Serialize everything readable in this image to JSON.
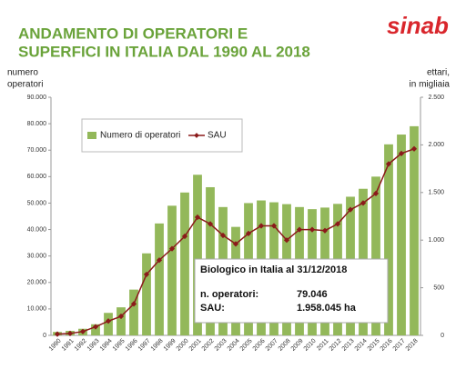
{
  "chart_data": {
    "type": "combo",
    "title": [
      "ANDAMENTO DI OPERATORI E",
      "SUPERFICI IN ITALIA DAL 1990 AL 2018"
    ],
    "logo": "sinab",
    "y_label": [
      "numero",
      "operatori"
    ],
    "y2_label": [
      "ettari,",
      "in migliaia"
    ],
    "categories": [
      "1990",
      "1991",
      "1992",
      "1993",
      "1994",
      "1995",
      "1996",
      "1997",
      "1998",
      "1999",
      "2000",
      "2001",
      "2002",
      "2003",
      "2004",
      "2005",
      "2006",
      "2007",
      "2008",
      "2009",
      "2010",
      "2011",
      "2012",
      "2013",
      "2014",
      "2015",
      "2016",
      "2017",
      "2018"
    ],
    "series": [
      {
        "name": "Numero di operatori",
        "type": "bar",
        "color": "#93b85a",
        "values": [
          1300,
          1700,
          2500,
          4200,
          8500,
          10600,
          17300,
          31000,
          42300,
          49000,
          54000,
          60700,
          56000,
          48500,
          41000,
          50000,
          51000,
          50300,
          49600,
          48500,
          47700,
          48300,
          49700,
          52400,
          55400,
          60000,
          72200,
          75900,
          79046
        ]
      },
      {
        "name": "SAU",
        "type": "line",
        "axis": "y2",
        "color": "#8b1a1a",
        "values": [
          13,
          20,
          40,
          90,
          150,
          200,
          330,
          640,
          790,
          910,
          1040,
          1240,
          1170,
          1050,
          960,
          1070,
          1150,
          1150,
          1000,
          1110,
          1110,
          1100,
          1170,
          1320,
          1390,
          1490,
          1800,
          1910,
          1958.045
        ]
      }
    ],
    "ylim": [
      0,
      90000
    ],
    "yticks": [
      0,
      {
        "value": 10000,
        "label": "10.000"
      },
      {
        "value": 20000,
        "label": "20.000"
      },
      {
        "value": 30000,
        "label": "30.000"
      },
      {
        "value": 40000,
        "label": "40.000"
      },
      {
        "value": 50000,
        "label": "50.000"
      },
      {
        "value": 60000,
        "label": "60.000"
      },
      {
        "value": 70000,
        "label": "70.000"
      },
      {
        "value": 80000,
        "label": "80.000"
      },
      {
        "value": 90000,
        "label": "90.000"
      }
    ],
    "y2lim": [
      0,
      2500
    ],
    "y2ticks": [
      0,
      500,
      {
        "value": 1000,
        "label": "1.000"
      },
      {
        "value": 1500,
        "label": "1.500"
      },
      {
        "value": 2000,
        "label": "2.000"
      },
      {
        "value": 2500,
        "label": "2.500"
      }
    ],
    "annotation": {
      "title": "Biologico in Italia al 31/12/2018",
      "rows": [
        [
          "n. operatori:",
          "79.046"
        ],
        [
          "SAU:",
          "1.958.045  ha"
        ]
      ]
    }
  }
}
